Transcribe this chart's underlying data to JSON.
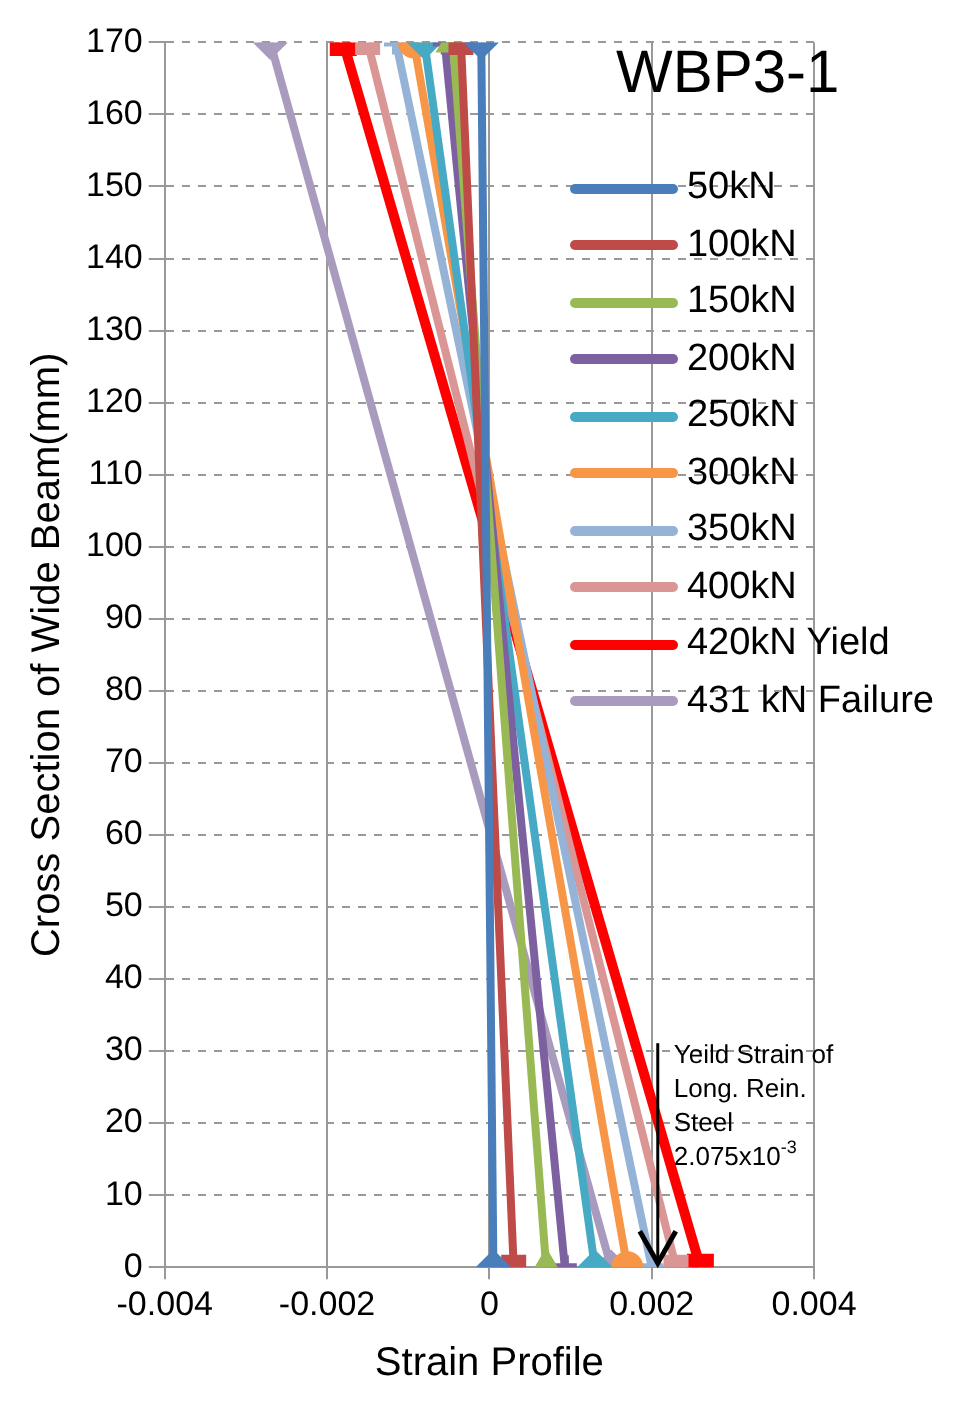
{
  "chart_data": {
    "type": "line",
    "title": "WBP3-1",
    "xlabel": "Strain Profile",
    "ylabel": "Cross Section of Wide Beam(mm)",
    "xlim": [
      -0.004,
      0.004
    ],
    "xticks": [
      -0.004,
      -0.002,
      0,
      0.002,
      0.004
    ],
    "ylim": [
      0,
      170
    ],
    "yticks": [
      0,
      10,
      20,
      30,
      40,
      50,
      60,
      70,
      80,
      90,
      100,
      110,
      120,
      130,
      140,
      150,
      160,
      170
    ],
    "grid": true,
    "legend": "top right",
    "line_style": "solid",
    "annotations": [
      {
        "text": "Yeild Strain of Long. Rein. Steel 2.075x10$^{-3}$",
        "x": 0.002075,
        "y": 0
      }
    ],
    "series": [
      {
        "name": "50kN",
        "color": "#4a7ebb",
        "marker": "diamond",
        "x": [
          5e-05,
          -0.0001
        ],
        "values": [
          0,
          170
        ]
      },
      {
        "name": "100kN",
        "color": "#be4b48",
        "marker": "square",
        "x": [
          0.0003,
          -0.00035
        ],
        "values": [
          0,
          170
        ]
      },
      {
        "name": "150kN",
        "color": "#98b954",
        "marker": "triangle",
        "x": [
          0.0007,
          -0.00045
        ],
        "values": [
          0,
          170
        ]
      },
      {
        "name": "200kN",
        "color": "#7d60a0",
        "marker": "cross",
        "x": [
          0.00093,
          -0.00055
        ],
        "values": [
          0,
          170
        ]
      },
      {
        "name": "250kN",
        "color": "#46aac5",
        "marker": "diamond",
        "x": [
          0.0013,
          -0.0008
        ],
        "values": [
          0,
          170
        ]
      },
      {
        "name": "300kN",
        "color": "#f79646",
        "marker": "circle",
        "x": [
          0.0017,
          -0.00093
        ],
        "values": [
          0,
          170
        ]
      },
      {
        "name": "350kN",
        "color": "#95b3d7",
        "marker": "cross",
        "x": [
          0.002,
          -0.00115
        ],
        "values": [
          0,
          170
        ]
      },
      {
        "name": "400kN",
        "color": "#d99694",
        "marker": "square",
        "x": [
          0.0023,
          -0.0015
        ],
        "values": [
          0,
          170
        ]
      },
      {
        "name": "420kN Yield",
        "color": "#ff0000",
        "marker": "square",
        "x": [
          0.0026,
          -0.0018
        ],
        "values": [
          0,
          170
        ]
      },
      {
        "name": "431 kN Failure",
        "color": "#a99bbd",
        "marker": "diamond",
        "x": [
          0.0015,
          -0.0027
        ],
        "values": [
          0,
          170
        ]
      }
    ]
  }
}
